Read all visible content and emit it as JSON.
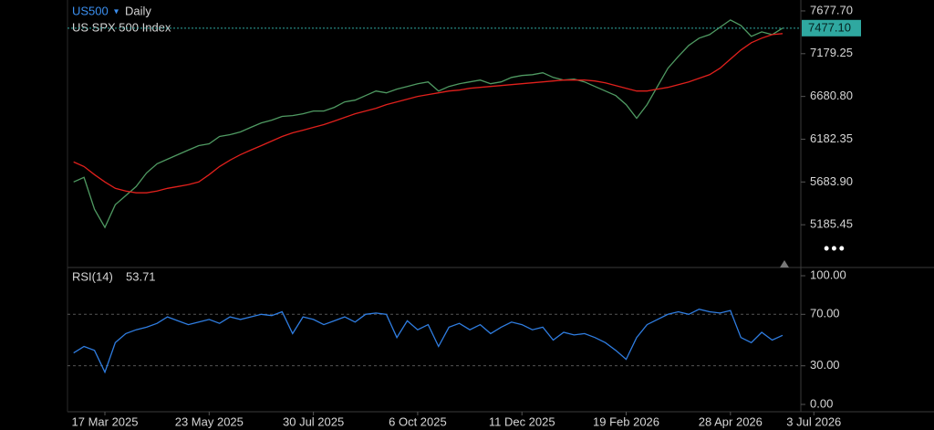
{
  "header": {
    "symbol": "US500",
    "interval": "Daily",
    "name": "US SPX 500 Index"
  },
  "chart_data": [
    {
      "type": "line",
      "ylim": [
        4687,
        7805
      ],
      "yticks": [
        {
          "value": 7677.7,
          "label": "7677.70"
        },
        {
          "value": 7179.25,
          "label": "7179.25"
        },
        {
          "value": 6680.8,
          "label": "6680.80"
        },
        {
          "value": 6182.35,
          "label": "6182.35"
        },
        {
          "value": 5683.9,
          "label": "5683.90"
        },
        {
          "value": 5185.45,
          "label": "5185.45"
        }
      ],
      "last_price": {
        "value": 7477.1,
        "label": "7477.10"
      },
      "series": [
        {
          "color": "#4f9a62",
          "values": [
            5684,
            5737,
            5366,
            5154,
            5419,
            5525,
            5631,
            5790,
            5896,
            5949,
            6002,
            6055,
            6108,
            6129,
            6214,
            6235,
            6267,
            6320,
            6373,
            6405,
            6448,
            6458,
            6479,
            6511,
            6511,
            6554,
            6617,
            6638,
            6691,
            6744,
            6723,
            6766,
            6797,
            6829,
            6850,
            6744,
            6797,
            6829,
            6850,
            6872,
            6829,
            6850,
            6903,
            6925,
            6935,
            6957,
            6903,
            6872,
            6882,
            6850,
            6797,
            6744,
            6691,
            6585,
            6426,
            6585,
            6797,
            7010,
            7147,
            7275,
            7360,
            7402,
            7487,
            7572,
            7508,
            7381,
            7434,
            7402,
            7477,
            null,
            null,
            null
          ]
        },
        {
          "color": "#e0201c",
          "values": [
            5917,
            5864,
            5769,
            5684,
            5610,
            5578,
            5557,
            5557,
            5578,
            5610,
            5631,
            5652,
            5684,
            5769,
            5864,
            5938,
            6002,
            6055,
            6108,
            6161,
            6214,
            6257,
            6288,
            6320,
            6352,
            6394,
            6437,
            6479,
            6511,
            6543,
            6585,
            6617,
            6649,
            6681,
            6702,
            6723,
            6744,
            6755,
            6776,
            6787,
            6797,
            6808,
            6819,
            6829,
            6840,
            6850,
            6861,
            6872,
            6872,
            6872,
            6861,
            6840,
            6808,
            6776,
            6744,
            6744,
            6766,
            6787,
            6819,
            6850,
            6893,
            6935,
            7010,
            7116,
            7222,
            7307,
            7360,
            7402,
            7413,
            null,
            null,
            null
          ]
        }
      ]
    },
    {
      "type": "line",
      "title": "RSI(14)",
      "last_value": 53.71,
      "ylim": [
        -5.7,
        106.4
      ],
      "yticks": [
        {
          "value": 100,
          "label": "100.00"
        },
        {
          "value": 70,
          "label": "70.00"
        },
        {
          "value": 30,
          "label": "30.00"
        },
        {
          "value": 0,
          "label": "0.00"
        }
      ],
      "guides": [
        70,
        30
      ],
      "categories": [
        null,
        null,
        null,
        "17 Mar 2025",
        null,
        null,
        null,
        null,
        null,
        null,
        null,
        null,
        null,
        "23 May 2025",
        null,
        null,
        null,
        null,
        null,
        null,
        null,
        null,
        null,
        "30 Jul 2025",
        null,
        null,
        null,
        null,
        null,
        null,
        null,
        null,
        null,
        "6 Oct 2025",
        null,
        null,
        null,
        null,
        null,
        null,
        null,
        null,
        null,
        "11 Dec 2025",
        null,
        null,
        null,
        null,
        null,
        null,
        null,
        null,
        null,
        "19 Feb 2026",
        null,
        null,
        null,
        null,
        null,
        null,
        null,
        null,
        null,
        "28 Apr 2026",
        null,
        null,
        null,
        null,
        null,
        null,
        null,
        "3 Jul 2026"
      ],
      "series": [
        {
          "color": "#2f7de1",
          "values": [
            40,
            45,
            42,
            25,
            48,
            55,
            58,
            60,
            63,
            68,
            65,
            62,
            64,
            66,
            63,
            68,
            66,
            68,
            70,
            69,
            72,
            55,
            68,
            66,
            62,
            65,
            68,
            64,
            70,
            71,
            70,
            52,
            65,
            58,
            62,
            45,
            60,
            63,
            58,
            62,
            55,
            60,
            64,
            62,
            58,
            60,
            50,
            56,
            54,
            55,
            52,
            48,
            42,
            35,
            52,
            62,
            66,
            70,
            72,
            70,
            74,
            72,
            71,
            73,
            52,
            48,
            56,
            50,
            53.71,
            null,
            null,
            null
          ]
        }
      ]
    }
  ]
}
